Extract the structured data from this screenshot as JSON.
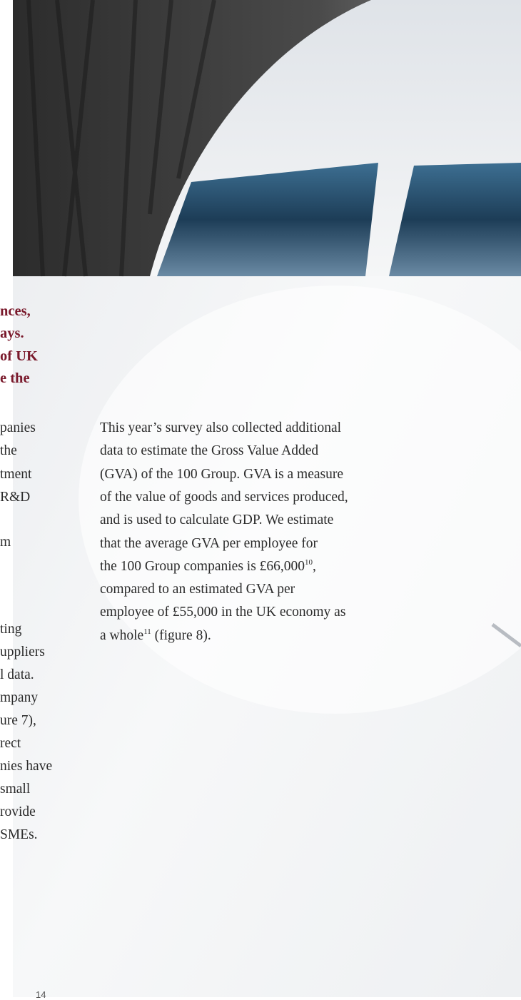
{
  "left_column": {
    "heading_lines": [
      "nces,",
      "ays.",
      "of UK",
      "e the"
    ],
    "body_lines": [
      "panies",
      "the",
      "tment",
      "R&D",
      "m",
      "ting",
      "uppliers",
      "l data.",
      "mpany",
      "ure 7),",
      "rect",
      "nies have",
      "small",
      "rovide",
      "SMEs."
    ]
  },
  "right_column": {
    "lines": [
      [
        {
          "text": "This year’s survey also collected additional"
        }
      ],
      [
        {
          "text": "data to estimate the Gross Value Added"
        }
      ],
      [
        {
          "text": "(GVA) of the 100 Group. GVA is a measure"
        }
      ],
      [
        {
          "text": "of the value of goods and services produced,"
        }
      ],
      [
        {
          "text": "and is used to calculate GDP. We estimate"
        }
      ],
      [
        {
          "text": "that the average GVA per employee for"
        }
      ],
      [
        {
          "text": "the 100 Group companies is £66,000"
        },
        {
          "sup": "10"
        },
        {
          "text": ","
        }
      ],
      [
        {
          "text": "compared to an estimated GVA per"
        }
      ],
      [
        {
          "text": "employee of £55,000 in the UK economy as"
        }
      ],
      [
        {
          "text": "a whole"
        },
        {
          "sup": "11"
        },
        {
          "text": " (figure 8)."
        }
      ]
    ]
  },
  "footer": {
    "page_number": "14"
  }
}
